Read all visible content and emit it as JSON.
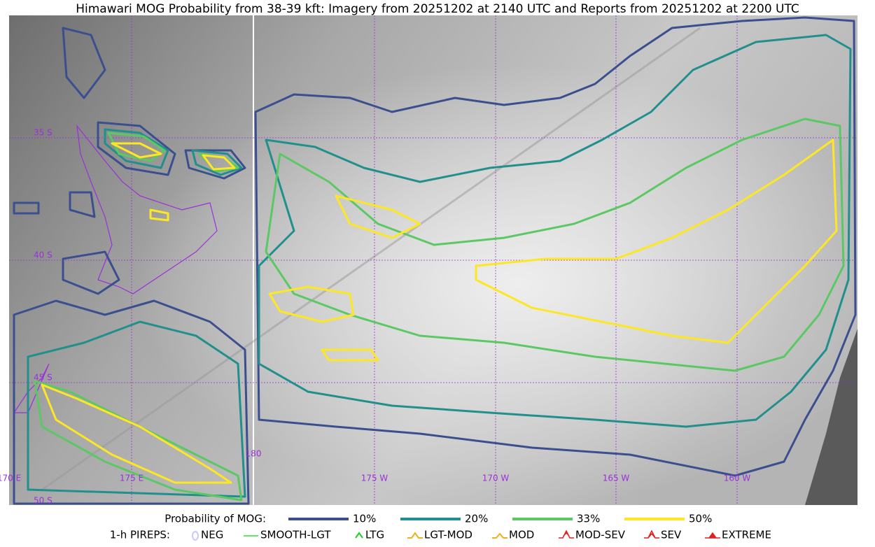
{
  "title": "Himawari MOG Probability from 38-39 kft: Imagery from 20251202 at 2140 UTC and Reports from 20251202 at 2200 UTC",
  "map": {
    "lat_labels": [
      "35 S",
      "40 S",
      "45 S",
      "50 S"
    ],
    "lon_labels": [
      "170 E",
      "175 E",
      "180",
      "175 W",
      "170 W",
      "165 W",
      "160 W"
    ]
  },
  "legend": {
    "probability_title": "Probability of MOG:",
    "probability_items": [
      {
        "label": "10%",
        "color": "#3b4f8f"
      },
      {
        "label": "20%",
        "color": "#21908d"
      },
      {
        "label": "33%",
        "color": "#5cc863"
      },
      {
        "label": "50%",
        "color": "#fde725"
      }
    ],
    "pireps_title": "1-h PIREPS:",
    "pirep_items": [
      {
        "label": "NEG",
        "color": "#c8c8ff"
      },
      {
        "label": "SMOOTH-LGT",
        "color": "#33dd33"
      },
      {
        "label": "LTG",
        "color": "#22cc22"
      },
      {
        "label": "LGT-MOD",
        "color": "#f0b020"
      },
      {
        "label": "MOD",
        "color": "#f0b020"
      },
      {
        "label": "MOD-SEV",
        "color": "#e02020"
      },
      {
        "label": "SEV",
        "color": "#e02020"
      },
      {
        "label": "EXTREME",
        "color": "#e02020"
      }
    ]
  }
}
